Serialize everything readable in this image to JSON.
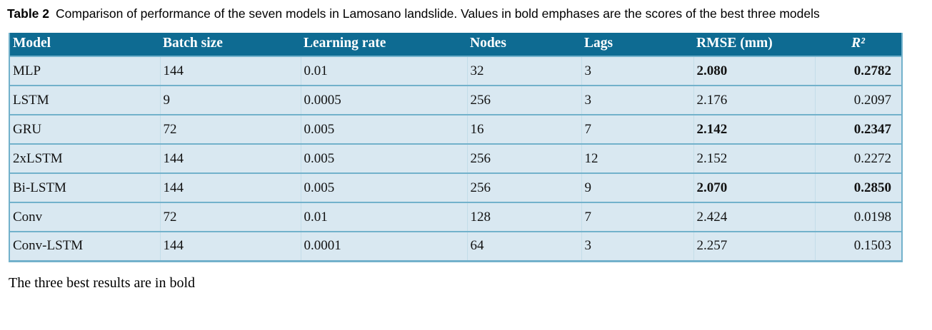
{
  "caption": {
    "label": "Table 2",
    "text": "Comparison of performance of the seven models in Lamosano landslide. Values in bold emphases are the scores of the best three models"
  },
  "table": {
    "columns": [
      {
        "key": "model",
        "label": "Model"
      },
      {
        "key": "batch_size",
        "label": "Batch size"
      },
      {
        "key": "learning_rate",
        "label": "Learning rate"
      },
      {
        "key": "nodes",
        "label": "Nodes"
      },
      {
        "key": "lags",
        "label": "Lags"
      },
      {
        "key": "rmse",
        "label": "RMSE (mm)"
      },
      {
        "key": "r2",
        "label": "R²"
      }
    ],
    "rows": [
      {
        "model": "MLP",
        "batch_size": "144",
        "learning_rate": "0.01",
        "nodes": "32",
        "lags": "3",
        "rmse": "2.080",
        "r2": "0.2782",
        "best": true
      },
      {
        "model": "LSTM",
        "batch_size": "9",
        "learning_rate": "0.0005",
        "nodes": "256",
        "lags": "3",
        "rmse": "2.176",
        "r2": "0.2097",
        "best": false
      },
      {
        "model": "GRU",
        "batch_size": "72",
        "learning_rate": "0.005",
        "nodes": "16",
        "lags": "7",
        "rmse": "2.142",
        "r2": "0.2347",
        "best": true
      },
      {
        "model": "2xLSTM",
        "batch_size": "144",
        "learning_rate": "0.005",
        "nodes": "256",
        "lags": "12",
        "rmse": "2.152",
        "r2": "0.2272",
        "best": false
      },
      {
        "model": "Bi-LSTM",
        "batch_size": "144",
        "learning_rate": "0.005",
        "nodes": "256",
        "lags": "9",
        "rmse": "2.070",
        "r2": "0.2850",
        "best": true
      },
      {
        "model": "Conv",
        "batch_size": "72",
        "learning_rate": "0.01",
        "nodes": "128",
        "lags": "7",
        "rmse": "2.424",
        "r2": "0.0198",
        "best": false
      },
      {
        "model": "Conv-LSTM",
        "batch_size": "144",
        "learning_rate": "0.0001",
        "nodes": "64",
        "lags": "3",
        "rmse": "2.257",
        "r2": "0.1503",
        "best": false
      }
    ]
  },
  "footnote": "The three best results are in bold",
  "colors": {
    "header_bg": "#0e6b92",
    "row_bg": "#d9e8f1",
    "separator": "#72b1cb",
    "header_text": "#ffffff",
    "body_text": "#121212"
  }
}
